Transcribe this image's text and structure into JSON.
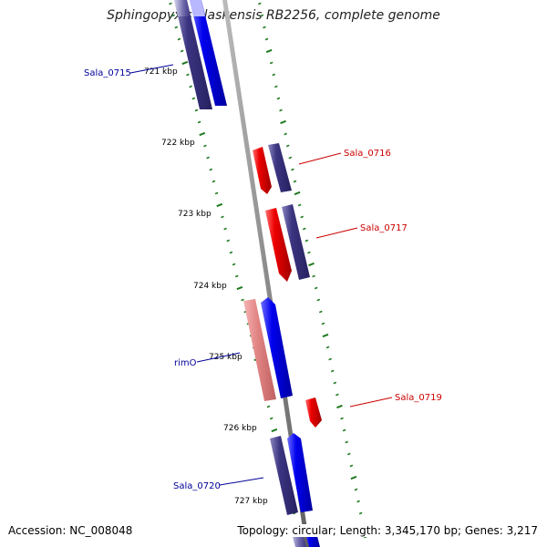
{
  "title": "Sphingopyxis alaskensis RB2256, complete genome",
  "accession": "Accession: NC_008048",
  "summary": "Topology: circular; Length: 3,345,170 bp; Genes: 3,217",
  "colors": {
    "backbone": "#8c8c8c",
    "tick": "#1f7a1f",
    "forward_cds": "#0000ee",
    "forward_gene": "#3b3480",
    "reverse_cds": "#ee0000",
    "reverse_gene": "#3b3480",
    "rrna_like": "#e38686",
    "label_forward": "#000099",
    "label_reverse": "#cc0000"
  },
  "scale_labels": [
    "721 kbp",
    "722 kbp",
    "723 kbp",
    "724 kbp",
    "725 kbp",
    "726 kbp",
    "727 kbp"
  ],
  "features": [
    {
      "label": "Sala_0715",
      "strand": "forward"
    },
    {
      "label": "Sala_0716",
      "strand": "reverse"
    },
    {
      "label": "Sala_0717",
      "strand": "reverse"
    },
    {
      "label": "rimO",
      "strand": "forward"
    },
    {
      "label": "Sala_0719",
      "strand": "reverse"
    },
    {
      "label": "Sala_0720",
      "strand": "forward"
    }
  ]
}
